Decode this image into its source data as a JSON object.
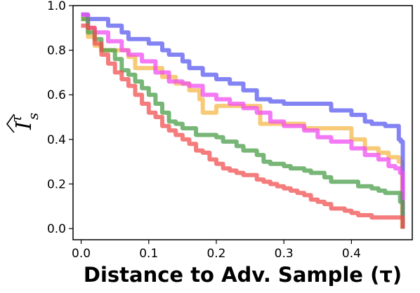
{
  "chart_data": {
    "type": "line",
    "title": "",
    "xlabel": "Distance to Adv. Sample (τ)",
    "ylabel": {
      "base": "I",
      "sub": "s",
      "sup": "τ"
    },
    "xlim": [
      -0.012,
      0.49
    ],
    "ylim": [
      -0.05,
      1.0
    ],
    "xticks": [
      0.0,
      0.1,
      0.2,
      0.3,
      0.4
    ],
    "xtick_labels": [
      "0.0",
      "0.1",
      "0.2",
      "0.3",
      "0.4"
    ],
    "yticks": [
      0.0,
      0.2,
      0.4,
      0.6,
      0.8,
      1.0
    ],
    "ytick_labels": [
      "0.0",
      "0.2",
      "0.4",
      "0.6",
      "0.8",
      "1.0"
    ],
    "grid": false,
    "legend": "none",
    "series": [
      {
        "color": "#f4b84a",
        "points": [
          [
            0.0,
            0.94
          ],
          [
            0.01,
            0.86
          ],
          [
            0.02,
            0.82
          ],
          [
            0.03,
            0.8
          ],
          [
            0.06,
            0.8
          ],
          [
            0.07,
            0.77
          ],
          [
            0.08,
            0.72
          ],
          [
            0.1,
            0.72
          ],
          [
            0.12,
            0.68
          ],
          [
            0.14,
            0.65
          ],
          [
            0.16,
            0.62
          ],
          [
            0.175,
            0.58
          ],
          [
            0.18,
            0.52
          ],
          [
            0.19,
            0.52
          ],
          [
            0.2,
            0.55
          ],
          [
            0.26,
            0.55
          ],
          [
            0.265,
            0.47
          ],
          [
            0.32,
            0.47
          ],
          [
            0.33,
            0.45
          ],
          [
            0.36,
            0.45
          ],
          [
            0.39,
            0.45
          ],
          [
            0.4,
            0.4
          ],
          [
            0.42,
            0.36
          ],
          [
            0.44,
            0.34
          ],
          [
            0.455,
            0.32
          ],
          [
            0.468,
            0.32
          ],
          [
            0.47,
            0.3
          ],
          [
            0.475,
            0.0
          ]
        ]
      },
      {
        "color": "#5a5af0",
        "points": [
          [
            0.0,
            0.96
          ],
          [
            0.005,
            0.96
          ],
          [
            0.01,
            0.94
          ],
          [
            0.03,
            0.94
          ],
          [
            0.04,
            0.91
          ],
          [
            0.06,
            0.88
          ],
          [
            0.07,
            0.85
          ],
          [
            0.09,
            0.85
          ],
          [
            0.1,
            0.83
          ],
          [
            0.12,
            0.8
          ],
          [
            0.13,
            0.78
          ],
          [
            0.15,
            0.75
          ],
          [
            0.16,
            0.72
          ],
          [
            0.18,
            0.69
          ],
          [
            0.2,
            0.67
          ],
          [
            0.22,
            0.65
          ],
          [
            0.24,
            0.62
          ],
          [
            0.26,
            0.58
          ],
          [
            0.28,
            0.57
          ],
          [
            0.3,
            0.56
          ],
          [
            0.34,
            0.56
          ],
          [
            0.37,
            0.53
          ],
          [
            0.4,
            0.51
          ],
          [
            0.42,
            0.48
          ],
          [
            0.43,
            0.47
          ],
          [
            0.45,
            0.46
          ],
          [
            0.465,
            0.46
          ],
          [
            0.47,
            0.4
          ],
          [
            0.473,
            0.39
          ],
          [
            0.476,
            0.0
          ]
        ]
      },
      {
        "color": "#f04cf0",
        "points": [
          [
            0.0,
            0.96
          ],
          [
            0.01,
            0.9
          ],
          [
            0.02,
            0.88
          ],
          [
            0.04,
            0.84
          ],
          [
            0.06,
            0.8
          ],
          [
            0.07,
            0.78
          ],
          [
            0.09,
            0.75
          ],
          [
            0.11,
            0.7
          ],
          [
            0.13,
            0.66
          ],
          [
            0.15,
            0.65
          ],
          [
            0.16,
            0.64
          ],
          [
            0.18,
            0.6
          ],
          [
            0.2,
            0.58
          ],
          [
            0.22,
            0.56
          ],
          [
            0.24,
            0.54
          ],
          [
            0.26,
            0.52
          ],
          [
            0.28,
            0.48
          ],
          [
            0.3,
            0.46
          ],
          [
            0.33,
            0.44
          ],
          [
            0.35,
            0.41
          ],
          [
            0.37,
            0.39
          ],
          [
            0.4,
            0.36
          ],
          [
            0.42,
            0.33
          ],
          [
            0.44,
            0.31
          ],
          [
            0.455,
            0.28
          ],
          [
            0.465,
            0.27
          ],
          [
            0.472,
            0.25
          ],
          [
            0.476,
            0.0
          ]
        ]
      },
      {
        "color": "#4a9e4a",
        "points": [
          [
            0.0,
            0.94
          ],
          [
            0.01,
            0.88
          ],
          [
            0.02,
            0.85
          ],
          [
            0.03,
            0.8
          ],
          [
            0.05,
            0.76
          ],
          [
            0.06,
            0.71
          ],
          [
            0.07,
            0.69
          ],
          [
            0.08,
            0.66
          ],
          [
            0.09,
            0.63
          ],
          [
            0.1,
            0.6
          ],
          [
            0.11,
            0.56
          ],
          [
            0.12,
            0.52
          ],
          [
            0.13,
            0.48
          ],
          [
            0.14,
            0.47
          ],
          [
            0.15,
            0.45
          ],
          [
            0.16,
            0.45
          ],
          [
            0.17,
            0.42
          ],
          [
            0.19,
            0.42
          ],
          [
            0.2,
            0.41
          ],
          [
            0.21,
            0.39
          ],
          [
            0.23,
            0.37
          ],
          [
            0.24,
            0.35
          ],
          [
            0.26,
            0.33
          ],
          [
            0.27,
            0.3
          ],
          [
            0.28,
            0.29
          ],
          [
            0.3,
            0.28
          ],
          [
            0.31,
            0.27
          ],
          [
            0.33,
            0.26
          ],
          [
            0.34,
            0.25
          ],
          [
            0.36,
            0.23
          ],
          [
            0.37,
            0.21
          ],
          [
            0.39,
            0.21
          ],
          [
            0.4,
            0.21
          ],
          [
            0.41,
            0.19
          ],
          [
            0.42,
            0.19
          ],
          [
            0.43,
            0.18
          ],
          [
            0.44,
            0.17
          ],
          [
            0.45,
            0.16
          ],
          [
            0.468,
            0.16
          ],
          [
            0.472,
            0.12
          ],
          [
            0.476,
            0.0
          ]
        ]
      },
      {
        "color": "#f05050",
        "points": [
          [
            0.0,
            0.91
          ],
          [
            0.01,
            0.9
          ],
          [
            0.02,
            0.83
          ],
          [
            0.03,
            0.78
          ],
          [
            0.04,
            0.74
          ],
          [
            0.05,
            0.7
          ],
          [
            0.06,
            0.67
          ],
          [
            0.07,
            0.64
          ],
          [
            0.08,
            0.6
          ],
          [
            0.09,
            0.56
          ],
          [
            0.1,
            0.52
          ],
          [
            0.11,
            0.5
          ],
          [
            0.12,
            0.46
          ],
          [
            0.13,
            0.44
          ],
          [
            0.14,
            0.42
          ],
          [
            0.15,
            0.4
          ],
          [
            0.16,
            0.38
          ],
          [
            0.17,
            0.35
          ],
          [
            0.18,
            0.34
          ],
          [
            0.19,
            0.31
          ],
          [
            0.2,
            0.29
          ],
          [
            0.21,
            0.27
          ],
          [
            0.22,
            0.26
          ],
          [
            0.23,
            0.25
          ],
          [
            0.24,
            0.24
          ],
          [
            0.26,
            0.22
          ],
          [
            0.27,
            0.21
          ],
          [
            0.28,
            0.2
          ],
          [
            0.29,
            0.19
          ],
          [
            0.3,
            0.18
          ],
          [
            0.31,
            0.17
          ],
          [
            0.32,
            0.16
          ],
          [
            0.33,
            0.15
          ],
          [
            0.34,
            0.13
          ],
          [
            0.35,
            0.12
          ],
          [
            0.36,
            0.11
          ],
          [
            0.37,
            0.09
          ],
          [
            0.38,
            0.09
          ],
          [
            0.39,
            0.08
          ],
          [
            0.4,
            0.07
          ],
          [
            0.41,
            0.06
          ],
          [
            0.42,
            0.06
          ],
          [
            0.43,
            0.05
          ],
          [
            0.47,
            0.05
          ],
          [
            0.476,
            0.0
          ]
        ]
      }
    ]
  }
}
